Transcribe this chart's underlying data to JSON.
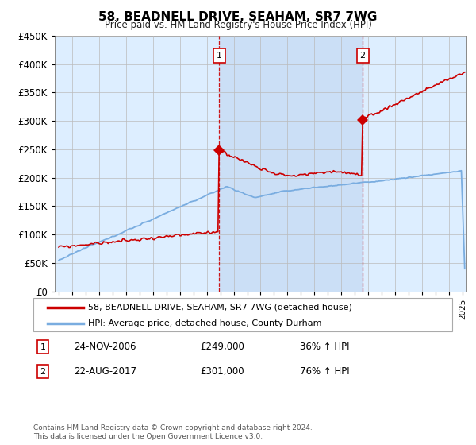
{
  "title": "58, BEADNELL DRIVE, SEAHAM, SR7 7WG",
  "subtitle": "Price paid vs. HM Land Registry's House Price Index (HPI)",
  "legend_line1": "58, BEADNELL DRIVE, SEAHAM, SR7 7WG (detached house)",
  "legend_line2": "HPI: Average price, detached house, County Durham",
  "footnote": "Contains HM Land Registry data © Crown copyright and database right 2024.\nThis data is licensed under the Open Government Licence v3.0.",
  "hpi_color": "#7aade0",
  "price_color": "#cc0000",
  "annotation_color": "#cc0000",
  "background_color": "#ddeeff",
  "shade_color": "#c8ddf5",
  "ylim": [
    0,
    450000
  ],
  "yticks": [
    0,
    50000,
    100000,
    150000,
    200000,
    250000,
    300000,
    350000,
    400000,
    450000
  ],
  "sale1_x": 2006.92,
  "sale1_y": 249000,
  "sale2_x": 2017.62,
  "sale2_y": 301000,
  "xmin": 1994.7,
  "xmax": 2025.3
}
